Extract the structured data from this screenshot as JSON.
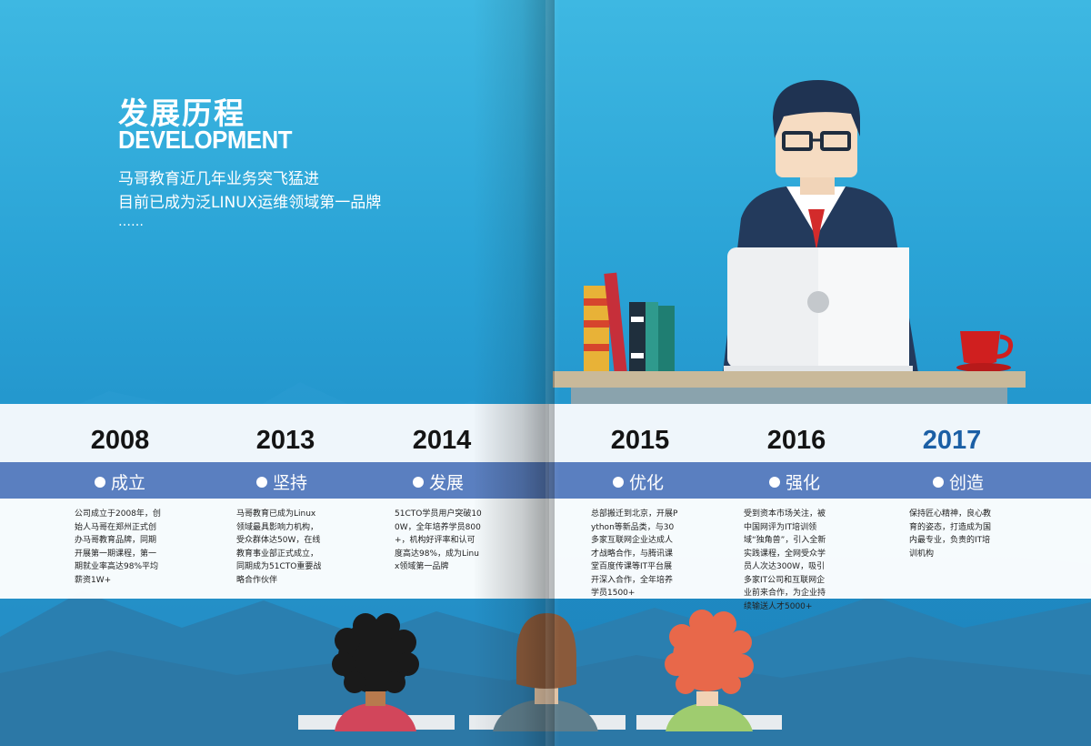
{
  "hero": {
    "title": "发展历程",
    "subtitle": "DEVELOPMENT",
    "line1": "马哥教育近几年业务突飞猛进",
    "line2": "目前已成为泛LINUX运维领域第一品牌",
    "line3": "……"
  },
  "timeline": [
    {
      "year": "2008",
      "tag": "成立",
      "desc": "公司成立于2008年，创始人马哥在郑州正式创办马哥教育品牌，同期开展第一期课程，第一期就业率高达98%平均薪资1W+"
    },
    {
      "year": "2013",
      "tag": "坚持",
      "desc": "马哥教育已成为Linux领域最具影响力机构，受众群体达50W，在线教育事业部正式成立，同期成为51CTO重要战略合作伙伴"
    },
    {
      "year": "2014",
      "tag": "发展",
      "desc": "51CTO学员用户突破100W，全年培养学员800+，机构好评率和认可度高达98%，成为Linux领域第一品牌"
    },
    {
      "year": "2015",
      "tag": "优化",
      "desc": "总部搬迁到北京，开展Python等新品类，与30多家互联网企业达成人才战略合作，与腾讯课堂百度传课等IT平台展开深入合作，全年培养学员1500+"
    },
    {
      "year": "2016",
      "tag": "强化",
      "desc": "受到资本市场关注，被中国网评为IT培训领域“独角兽”，引入全新实践课程，全网受众学员人次达300W，吸引多家IT公司和互联网企业前来合作，为企业持续输送人才5000+"
    },
    {
      "year": "2017",
      "tag": "创造",
      "desc": "保持匠心精神，良心教育的姿态，打造成为国内最专业，负责的IT培训机构"
    }
  ],
  "colors": {
    "background": "#2aa3d6",
    "band_accent": "#5a7fc0",
    "highlight_year": "#1b5fa5",
    "suit": "#233a5c",
    "tie": "#d32b2b",
    "cup": "#d01f1f"
  },
  "icons": [
    "teacher-illustration",
    "laptop-icon",
    "books-icon",
    "coffee-cup-icon",
    "student-figure"
  ]
}
